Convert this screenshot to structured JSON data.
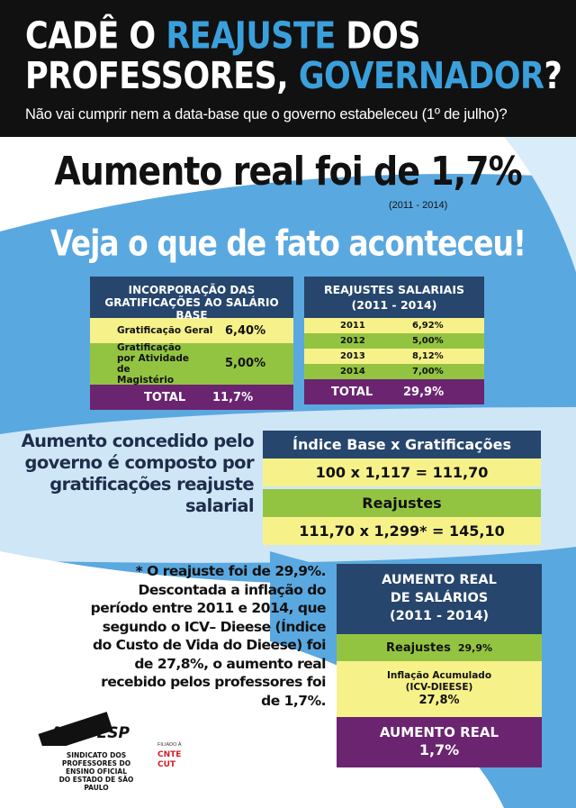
{
  "header": {
    "line1_a": "CADÊ O ",
    "line1_b": "REAJUSTE",
    "line1_c": " DOS",
    "line2_a": "PROFESSORES, ",
    "line2_b": "GOVERNADOR",
    "line2_c": "?",
    "subtitle": "Não vai cumprir nem a data-base que o governo estabeleceu (1º de julho)?"
  },
  "headline": "Aumento real foi de 1,7%",
  "headline_period": "(2011 - 2014)",
  "veja": "Veja o que de fato aconteceu!",
  "incorporacao": {
    "title": "INCORPORAÇÃO DAS GRATIFICAÇÕES AO SALÁRIO BASE",
    "rows": [
      {
        "label": "Gratificação Geral",
        "value": "6,40%"
      },
      {
        "label": "Gratificação por Atividade de Magistério",
        "value": "5,00%"
      }
    ],
    "total_label": "TOTAL",
    "total_value": "11,7%"
  },
  "reajustes": {
    "title": "REAJUSTES SALARIAIS",
    "period": "(2011 - 2014)",
    "rows": [
      {
        "year": "2011",
        "value": "6,92%"
      },
      {
        "year": "2012",
        "value": "5,00%"
      },
      {
        "year": "2013",
        "value": "8,12%"
      },
      {
        "year": "2014",
        "value": "7,00%"
      }
    ],
    "total_label": "TOTAL",
    "total_value": "29,9%"
  },
  "composto": "Aumento concedido pelo governo é composto por gratificações reajuste salarial",
  "formula": {
    "header1": "Índice Base  x  Gratificações",
    "calc1": "100  x  1,117  =  111,70",
    "header2": "Reajustes",
    "calc2": "111,70  x  1,299*  =  145,10"
  },
  "note": "* O reajuste foi de 29,9%. Descontada a inflação do período entre 2011 e 2014, que segundo o ICV– Dieese (Índice do Custo de Vida do Dieese) foi de 27,8%, o aumento real recebido pelos professores foi de 1,7%.",
  "aumento_real": {
    "title1": "AUMENTO REAL",
    "title2": "DE SALÁRIOS",
    "period": "(2011 - 2014)",
    "reaj_label": "Reajustes",
    "reaj_value": "29,9%",
    "infl_label1": "Inflação Acumulado",
    "infl_label2": "(ICV-DIEESE)",
    "infl_value": "27,8%",
    "result_label": "AUMENTO REAL",
    "result_value": "1,7%"
  },
  "logo": {
    "name": "APEOESP",
    "line1": "SINDICATO DOS",
    "line2": "PROFESSORES DO ENSINO OFICIAL",
    "line3": "DO ESTADO DE SÃO PAULO",
    "filiado": "FILIADO À",
    "cnte": "CNTE",
    "cut": "CUT"
  },
  "colors": {
    "navy": "#26466d",
    "yellow": "#f7f18a",
    "green": "#93c441",
    "purple": "#6b2470",
    "blue_accent": "#3aa0dc",
    "bg_blue": "#5aa8e0",
    "bg_light": "#cfe6f7"
  }
}
